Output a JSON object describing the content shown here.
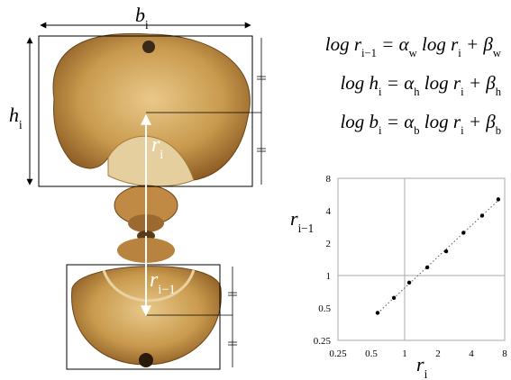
{
  "figure": {
    "labels": {
      "width": [
        {
          "text": "b",
          "sub": "i"
        }
      ],
      "height": [
        {
          "text": "h",
          "sub": "i"
        }
      ],
      "radius": [
        {
          "text": "r",
          "sub": "i"
        }
      ],
      "prev_radius": [
        {
          "text": "r",
          "sub": "i−1"
        }
      ]
    },
    "equations": [
      [
        {
          "text": "log r",
          "sub": "i−1"
        },
        {
          "text": " = α",
          "sub": "w"
        },
        {
          "text": " log r",
          "sub": "i"
        },
        {
          "text": " + β",
          "sub": "w"
        }
      ],
      [
        {
          "text": "log h",
          "sub": "i"
        },
        {
          "text": " = α",
          "sub": "h"
        },
        {
          "text": " log r",
          "sub": "i"
        },
        {
          "text": " + β",
          "sub": "h"
        }
      ],
      [
        {
          "text": "log b",
          "sub": "i"
        },
        {
          "text": " = α",
          "sub": "b"
        },
        {
          "text": " log r",
          "sub": "i"
        },
        {
          "text": " + β",
          "sub": "b"
        }
      ]
    ]
  },
  "chart_data": {
    "type": "scatter",
    "x_label": [
      {
        "text": "r",
        "sub": "i"
      }
    ],
    "y_label": [
      {
        "text": "r",
        "sub": "i−1"
      }
    ],
    "x": [
      0.57,
      0.8,
      1.1,
      1.6,
      2.37,
      3.4,
      5.0,
      7.0
    ],
    "values": [
      0.45,
      0.62,
      0.86,
      1.19,
      1.68,
      2.5,
      3.6,
      5.1
    ],
    "color": "#000000",
    "log_scale": true,
    "trendline": true,
    "grid": false,
    "hlines": [
      1
    ],
    "vlines": [
      1
    ],
    "xlim": [
      0.25,
      8
    ],
    "ylim": [
      0.25,
      8
    ],
    "xticks": [
      0.25,
      0.5,
      1,
      2,
      4,
      8
    ],
    "yticks": [
      0.25,
      0.5,
      1,
      2,
      4,
      8
    ]
  }
}
